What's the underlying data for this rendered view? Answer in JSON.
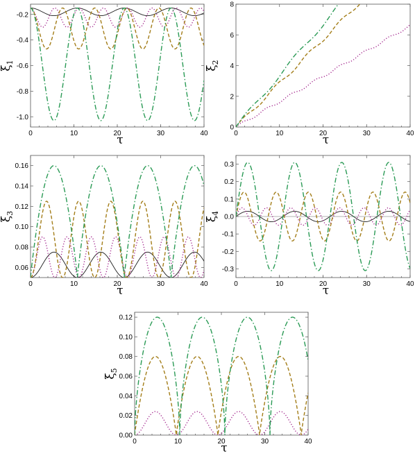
{
  "chart_data": [
    {
      "type": "line",
      "xlabel": "τ",
      "ylabel": "ξ",
      "ylabel_sub": "1",
      "xlim": [
        0,
        40
      ],
      "ylim": [
        -1.08,
        -0.12
      ],
      "xticks": [
        0,
        10,
        20,
        30,
        40
      ],
      "yticks": [
        -0.2,
        -0.4,
        -0.6,
        -0.8,
        -1.0
      ],
      "ytick_labels": [
        "-0.2",
        "-0.4",
        "-0.6",
        "-0.8",
        "-1.0"
      ],
      "grid": false,
      "series": [
        {
          "style": "solid",
          "color": "#1a1a1a",
          "kind": "sin",
          "base": -0.15,
          "low": -0.21,
          "period": 10.8,
          "phase": 0
        },
        {
          "style": "dotted",
          "color": "#a0208a",
          "kind": "sin",
          "base": -0.15,
          "low": -0.3,
          "period": 5.6,
          "phase": 0
        },
        {
          "style": "dashed",
          "color": "#a37d18",
          "kind": "sin",
          "base": -0.15,
          "low": -0.47,
          "period": 7.4,
          "phase": 0
        },
        {
          "style": "dashdot",
          "color": "#2a9a55",
          "kind": "sin",
          "base": -0.15,
          "low": -1.03,
          "period": 10.8,
          "phase": 0
        }
      ]
    },
    {
      "type": "line",
      "xlabel": "τ",
      "ylabel": "ξ",
      "ylabel_sub": "2",
      "xlim": [
        0,
        40
      ],
      "ylim": [
        0,
        8
      ],
      "xticks": [
        0,
        10,
        20,
        30,
        40
      ],
      "yticks": [
        0,
        2,
        4,
        6,
        8
      ],
      "ytick_labels": [
        "0",
        "2",
        "4",
        "6",
        "8"
      ],
      "grid": false,
      "series": [
        {
          "style": "dotted",
          "color": "#a0208a",
          "kind": "linear",
          "slope": 0.165,
          "wiggle": 0.08,
          "period": 5.6
        },
        {
          "style": "dashed",
          "color": "#a37d18",
          "kind": "linear",
          "slope": 0.285,
          "wiggle": 0.12,
          "period": 7.4
        },
        {
          "style": "dashdot",
          "color": "#2a9a55",
          "kind": "linear",
          "slope": 0.335,
          "wiggle": 0.14,
          "period": 10.8
        }
      ]
    },
    {
      "type": "line",
      "xlabel": "τ",
      "ylabel": "ξ",
      "ylabel_sub": "3",
      "xlim": [
        0,
        40
      ],
      "ylim": [
        0.05,
        0.17
      ],
      "xticks": [
        0,
        10,
        20,
        30,
        40
      ],
      "yticks": [
        0.06,
        0.08,
        0.1,
        0.12,
        0.14,
        0.16
      ],
      "ytick_labels": [
        "0.06",
        "0.08",
        "0.10",
        "0.12",
        "0.14",
        "0.16"
      ],
      "grid": false,
      "series": [
        {
          "style": "solid",
          "color": "#1a1a1a",
          "kind": "sin",
          "base": 0.05,
          "low": 0.075,
          "period": 10.8,
          "phase": 0
        },
        {
          "style": "dotted",
          "color": "#a0208a",
          "kind": "sin",
          "base": 0.05,
          "low": 0.09,
          "period": 5.6,
          "phase": 0
        },
        {
          "style": "dashed",
          "color": "#a37d18",
          "kind": "sin",
          "base": 0.05,
          "low": 0.125,
          "period": 7.4,
          "phase": 0
        },
        {
          "style": "dashdot",
          "color": "#2a9a55",
          "kind": "plateau",
          "base": 0.05,
          "low": 0.16,
          "period": 10.8,
          "phase": 0
        }
      ]
    },
    {
      "type": "line",
      "xlabel": "τ",
      "ylabel": "ξ",
      "ylabel_sub": "4",
      "xlim": [
        0,
        40
      ],
      "ylim": [
        -0.35,
        0.35
      ],
      "xticks": [
        0,
        10,
        20,
        30,
        40
      ],
      "yticks": [
        0.3,
        0.2,
        0.1,
        0.0,
        -0.1,
        -0.2,
        -0.3
      ],
      "ytick_labels": [
        "0.3",
        "0.2",
        "0.1",
        "0.0",
        "-0.1",
        "-0.2",
        "-0.3"
      ],
      "grid": false,
      "hline": 0,
      "series": [
        {
          "style": "solid",
          "color": "#1a1a1a",
          "kind": "osc",
          "amp": 0.03,
          "period": 10.8
        },
        {
          "style": "dotted",
          "color": "#a0208a",
          "kind": "osc",
          "amp": 0.05,
          "period": 5.6
        },
        {
          "style": "dashed",
          "color": "#a37d18",
          "kind": "osc",
          "amp": 0.14,
          "period": 7.4
        },
        {
          "style": "dashdot",
          "color": "#2a9a55",
          "kind": "osc",
          "amp": 0.31,
          "period": 10.8
        }
      ]
    },
    {
      "type": "line",
      "xlabel": "τ",
      "ylabel": "ξ",
      "ylabel_sub": "5",
      "xlim": [
        0,
        40
      ],
      "ylim": [
        0,
        0.125
      ],
      "xticks": [
        0,
        10,
        20,
        30,
        40
      ],
      "yticks": [
        0.0,
        0.02,
        0.04,
        0.06,
        0.08,
        0.1,
        0.12
      ],
      "ytick_labels": [
        "0.00",
        "0.02",
        "0.04",
        "0.06",
        "0.08",
        "0.10",
        "0.12"
      ],
      "grid": false,
      "series": [
        {
          "style": "dotted",
          "color": "#a0208a",
          "kind": "sin",
          "base": 0,
          "low": 0.024,
          "period": 9.6,
          "phase": 0
        },
        {
          "style": "dashed",
          "color": "#a37d18",
          "kind": "plateau",
          "base": 0,
          "low": 0.08,
          "period": 9.6,
          "phase": 0
        },
        {
          "style": "dashdot",
          "color": "#2a9a55",
          "kind": "plateau2",
          "base": 0,
          "low": 0.12,
          "period": 10.4,
          "phase": 0
        }
      ]
    }
  ]
}
